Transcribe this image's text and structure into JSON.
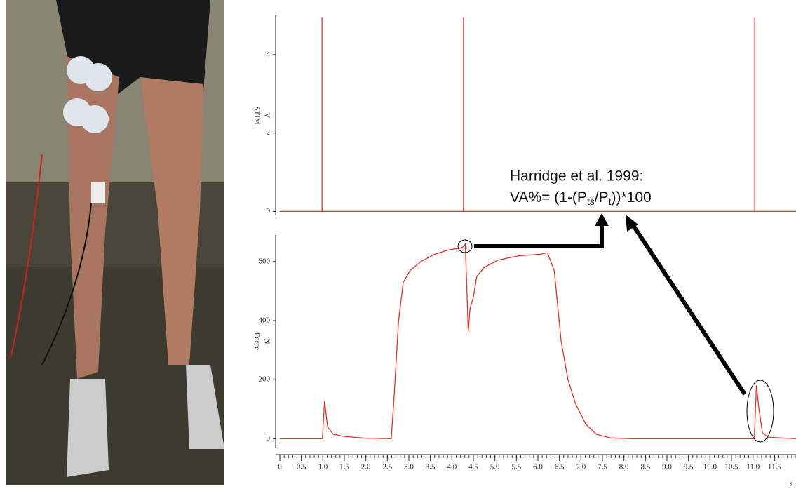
{
  "chart_data": [
    {
      "type": "line",
      "ylabel": "STIM",
      "yunit": "V",
      "x": [
        0,
        0.98,
        0.98,
        0.98,
        4.27,
        4.27,
        4.27,
        11.04,
        11.04,
        11.04,
        12
      ],
      "series": [
        {
          "color": "#e53030",
          "values": [
            0,
            0,
            4.95,
            0,
            0,
            4.95,
            0,
            0,
            4.95,
            0,
            0
          ]
        }
      ],
      "xlim": [
        0,
        12
      ],
      "ylim": [
        -0.1,
        5
      ],
      "yticks": [
        0,
        2,
        4
      ],
      "annotation": {
        "line1": "Harridge et al. 1999:",
        "formula": [
          "VA%= (1-(P",
          "ts",
          "/P",
          "t",
          "))*100"
        ]
      }
    },
    {
      "type": "line",
      "ylabel": "Force",
      "yunit": "N",
      "xlabel": "s",
      "x": [
        0,
        0.99,
        1.04,
        1.11,
        1.24,
        1.48,
        1.97,
        2.59,
        2.66,
        2.76,
        2.87,
        3.03,
        3.28,
        3.6,
        3.93,
        4.18,
        4.26,
        4.31,
        4.35,
        4.38,
        4.42,
        4.5,
        4.58,
        4.75,
        5.07,
        5.56,
        6.05,
        6.22,
        6.38,
        6.46,
        6.54,
        6.7,
        6.87,
        7.11,
        7.36,
        7.68,
        8.17,
        11.03,
        11.08,
        11.14,
        11.22,
        11.35,
        12
      ],
      "series": [
        {
          "color": "#e53030",
          "values": [
            0,
            0,
            128,
            40,
            15,
            8,
            2,
            0,
            150,
            400,
            530,
            570,
            600,
            625,
            640,
            645,
            650,
            660,
            500,
            360,
            440,
            480,
            550,
            580,
            605,
            620,
            625,
            630,
            570,
            450,
            330,
            200,
            120,
            50,
            15,
            3,
            0,
            0,
            180,
            100,
            20,
            5,
            0
          ]
        }
      ],
      "xlim": [
        0,
        12
      ],
      "ylim": [
        -30,
        690
      ],
      "yticks": [
        0,
        200,
        400,
        600
      ],
      "xticks": [
        0,
        0.5,
        {
          "value": 1,
          "label": "1.0"
        },
        1.5,
        {
          "value": 2,
          "label": "2.0"
        },
        2.5,
        {
          "value": 3,
          "label": "3.0"
        },
        3.5,
        {
          "value": 4,
          "label": "4.0"
        },
        4.5,
        {
          "value": 5,
          "label": "5.0"
        },
        5.5,
        {
          "value": 6,
          "label": "6.0"
        },
        6.5,
        {
          "value": 7,
          "label": "7.0"
        },
        7.5,
        {
          "value": 8,
          "label": "8.0"
        },
        8.5,
        {
          "value": 9,
          "label": "9.0"
        },
        9.5,
        {
          "value": 10,
          "label": "10.0"
        },
        10.5,
        {
          "value": 11,
          "label": "11.0"
        },
        11.5
      ]
    }
  ]
}
